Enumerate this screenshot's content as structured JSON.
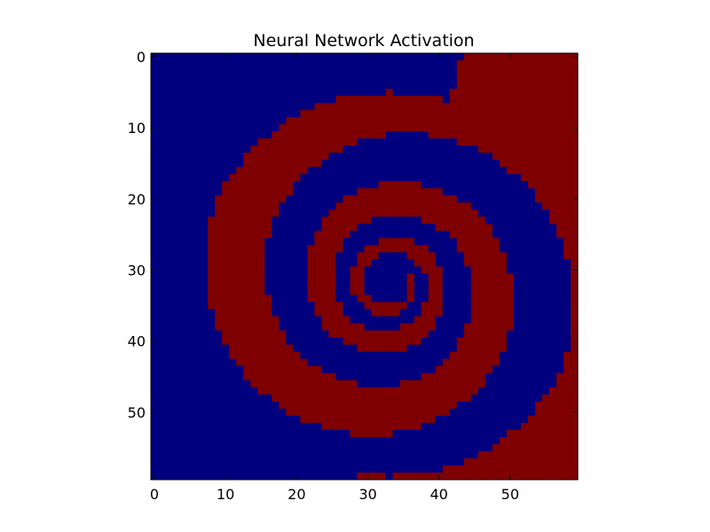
{
  "chart_data": {
    "type": "heatmap",
    "title": "Neural Network Activation",
    "xlabel": "",
    "ylabel": "",
    "grid": false,
    "xlim": [
      -0.5,
      59.5
    ],
    "ylim": [
      59.5,
      -0.5
    ],
    "x_ticks": [
      0,
      10,
      20,
      30,
      40,
      50
    ],
    "y_ticks": [
      0,
      10,
      20,
      30,
      40,
      50
    ],
    "x_tick_labels": [
      "0",
      "10",
      "20",
      "30",
      "40",
      "50"
    ],
    "y_tick_labels": [
      "0",
      "10",
      "20",
      "30",
      "40",
      "50"
    ],
    "grid_size": [
      60,
      60
    ],
    "classes": [
      {
        "value": 0,
        "color": "#00007f"
      },
      {
        "value": 1,
        "color": "#7f0000"
      }
    ],
    "description_of_values": "binary class map on a 60x60 grid; value 0 in blue region (upper-left), value 1 in red region (right and lower-left), forming an interleaved two-armed spiral centered near column 33, row 32"
  }
}
